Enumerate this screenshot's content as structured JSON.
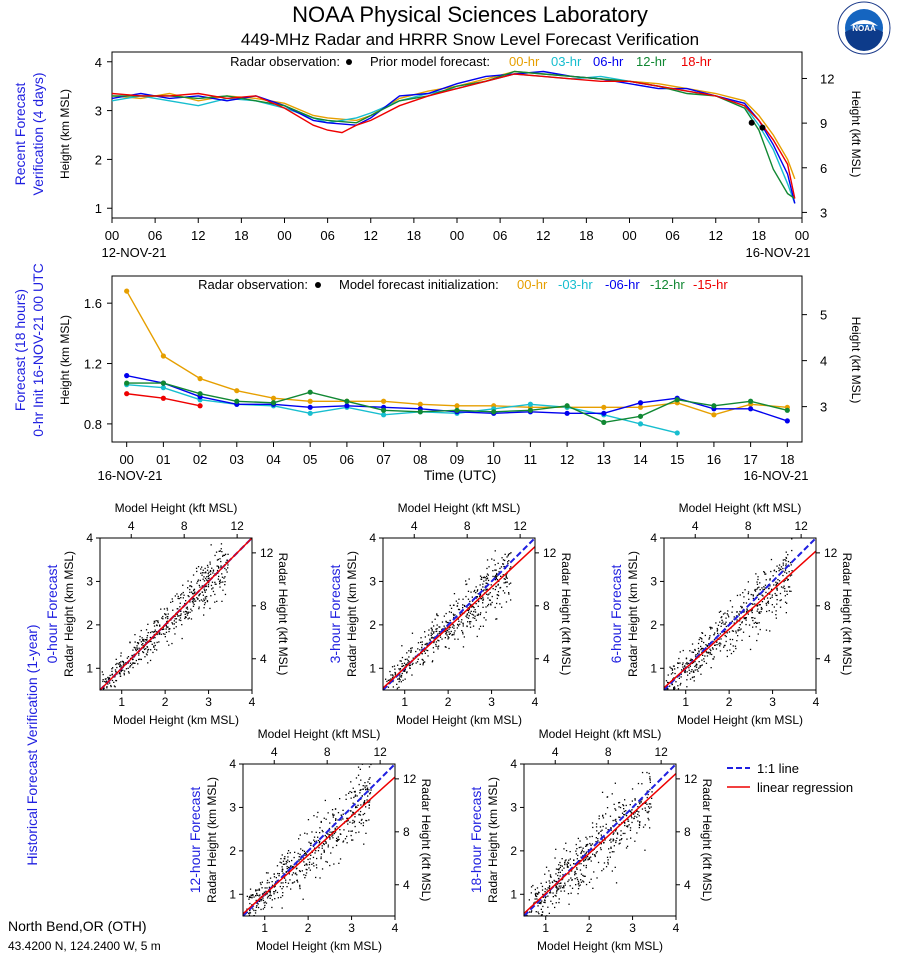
{
  "header": {
    "title": "NOAA Physical Sciences Laboratory",
    "subtitle": "449-MHz Radar and HRRR Snow Level Forecast Verification",
    "logo_text": "NOAA"
  },
  "colors": {
    "hr00": "#e69f00",
    "hr03": "#17becf",
    "hr06": "#0000ee",
    "hr12": "#118833",
    "hr15": "#ee0000",
    "hr18": "#ee0000",
    "side_label": "#1f1fe0",
    "regression": "#ee0000",
    "one_to_one": "#1f1fe0"
  },
  "panel1": {
    "side_label_1": "Recent Forecast",
    "side_label_2": "Verification (4 days)",
    "ylabel_left": "Height (km MSL)",
    "ylabel_right": "Height (kft MSL)",
    "legend_obs": "Radar observation:",
    "legend_model": "Prior model forecast:",
    "legend_series": [
      "00-hr",
      "03-hr",
      "06-hr",
      "12-hr",
      "18-hr"
    ],
    "date_start": "12-NOV-21",
    "date_end": "16-NOV-21"
  },
  "panel2": {
    "side_label_1": "Forecast (18 hours)",
    "side_label_2": "0-hr Init 16-NOV-21 00 UTC",
    "ylabel_left": "Height (km MSL)",
    "ylabel_right": "Height (kft MSL)",
    "xlabel": "Time (UTC)",
    "legend_obs": "Radar observation:",
    "legend_model": "Model forecast initialization:",
    "legend_series": [
      "00-hr",
      "-03-hr",
      "-06-hr",
      "-12-hr",
      "-15-hr"
    ],
    "date_start": "16-NOV-21",
    "date_end": "16-NOV-21"
  },
  "scatter_common": {
    "xlabel_bottom": "Model Height (km MSL)",
    "xlabel_top": "Model Height (kft MSL)",
    "ylabel_left": "Radar Height (km MSL)",
    "ylabel_right": "Radar Height (kft MSL)",
    "side_label": "Historical Forecast Verification (1-year)"
  },
  "legend_bottom": {
    "one_to_one": "1:1 line",
    "regression": "linear regression"
  },
  "station": {
    "name": "North Bend,OR (OTH)",
    "coords": "43.4200 N, 124.2400 W, 5 m"
  },
  "chart_data": [
    {
      "id": "recent_verification",
      "type": "line",
      "x_unit": "hours since 12-NOV-21 00 UTC",
      "x_tick_labels": [
        "00",
        "06",
        "12",
        "18",
        "00",
        "06",
        "12",
        "18",
        "00",
        "06",
        "12",
        "18",
        "00",
        "06",
        "12",
        "18",
        "00"
      ],
      "xlim": [
        0,
        96
      ],
      "ylim": [
        0.8,
        4.2
      ],
      "y_ticks": [
        1,
        2,
        3,
        4
      ],
      "y2_ticks_kft": [
        3,
        6,
        9,
        12
      ],
      "series": [
        {
          "name": "00-hr",
          "color_key": "hr00",
          "points": [
            [
              0,
              3.3
            ],
            [
              4,
              3.25
            ],
            [
              8,
              3.35
            ],
            [
              12,
              3.2
            ],
            [
              16,
              3.3
            ],
            [
              20,
              3.25
            ],
            [
              24,
              3.15
            ],
            [
              28,
              2.9
            ],
            [
              30,
              2.85
            ],
            [
              34,
              2.8
            ],
            [
              36,
              2.9
            ],
            [
              40,
              3.25
            ],
            [
              44,
              3.4
            ],
            [
              48,
              3.5
            ],
            [
              52,
              3.65
            ],
            [
              56,
              3.8
            ],
            [
              60,
              3.75
            ],
            [
              64,
              3.7
            ],
            [
              68,
              3.65
            ],
            [
              72,
              3.6
            ],
            [
              76,
              3.55
            ],
            [
              80,
              3.45
            ],
            [
              84,
              3.35
            ],
            [
              88,
              3.2
            ],
            [
              90,
              2.9
            ],
            [
              92,
              2.5
            ],
            [
              94,
              2.0
            ],
            [
              95,
              1.6
            ]
          ]
        },
        {
          "name": "03-hr",
          "color_key": "hr03",
          "points": [
            [
              0,
              3.2
            ],
            [
              4,
              3.3
            ],
            [
              8,
              3.2
            ],
            [
              12,
              3.1
            ],
            [
              16,
              3.25
            ],
            [
              20,
              3.2
            ],
            [
              24,
              3.05
            ],
            [
              28,
              2.85
            ],
            [
              30,
              2.75
            ],
            [
              34,
              2.85
            ],
            [
              36,
              2.95
            ],
            [
              40,
              3.2
            ],
            [
              44,
              3.35
            ],
            [
              48,
              3.45
            ],
            [
              52,
              3.6
            ],
            [
              56,
              3.75
            ],
            [
              60,
              3.7
            ],
            [
              64,
              3.65
            ],
            [
              68,
              3.7
            ],
            [
              72,
              3.6
            ],
            [
              76,
              3.5
            ],
            [
              80,
              3.4
            ],
            [
              84,
              3.3
            ],
            [
              88,
              3.1
            ],
            [
              90,
              2.7
            ],
            [
              92,
              2.2
            ],
            [
              94,
              1.5
            ],
            [
              95,
              1.1
            ]
          ]
        },
        {
          "name": "06-hr",
          "color_key": "hr06",
          "points": [
            [
              0,
              3.25
            ],
            [
              4,
              3.35
            ],
            [
              8,
              3.25
            ],
            [
              12,
              3.3
            ],
            [
              16,
              3.2
            ],
            [
              20,
              3.3
            ],
            [
              24,
              3.1
            ],
            [
              28,
              2.8
            ],
            [
              30,
              2.75
            ],
            [
              34,
              2.7
            ],
            [
              36,
              2.85
            ],
            [
              40,
              3.3
            ],
            [
              44,
              3.35
            ],
            [
              48,
              3.55
            ],
            [
              52,
              3.7
            ],
            [
              56,
              3.75
            ],
            [
              60,
              3.8
            ],
            [
              64,
              3.7
            ],
            [
              68,
              3.65
            ],
            [
              72,
              3.55
            ],
            [
              76,
              3.45
            ],
            [
              80,
              3.45
            ],
            [
              84,
              3.3
            ],
            [
              88,
              3.15
            ],
            [
              90,
              2.8
            ],
            [
              92,
              2.3
            ],
            [
              94,
              1.7
            ],
            [
              95,
              1.1
            ]
          ]
        },
        {
          "name": "12-hr",
          "color_key": "hr12",
          "points": [
            [
              0,
              3.3
            ],
            [
              4,
              3.3
            ],
            [
              8,
              3.3
            ],
            [
              12,
              3.25
            ],
            [
              16,
              3.3
            ],
            [
              20,
              3.2
            ],
            [
              24,
              3.1
            ],
            [
              28,
              2.85
            ],
            [
              30,
              2.8
            ],
            [
              34,
              2.75
            ],
            [
              36,
              2.9
            ],
            [
              40,
              3.2
            ],
            [
              44,
              3.3
            ],
            [
              48,
              3.5
            ],
            [
              52,
              3.6
            ],
            [
              56,
              3.8
            ],
            [
              60,
              3.75
            ],
            [
              64,
              3.7
            ],
            [
              68,
              3.65
            ],
            [
              72,
              3.6
            ],
            [
              76,
              3.5
            ],
            [
              80,
              3.35
            ],
            [
              84,
              3.3
            ],
            [
              88,
              3.05
            ],
            [
              90,
              2.6
            ],
            [
              92,
              1.8
            ],
            [
              94,
              1.3
            ],
            [
              95,
              1.2
            ]
          ]
        },
        {
          "name": "18-hr",
          "color_key": "hr18",
          "points": [
            [
              0,
              3.35
            ],
            [
              4,
              3.3
            ],
            [
              8,
              3.3
            ],
            [
              12,
              3.35
            ],
            [
              16,
              3.25
            ],
            [
              20,
              3.3
            ],
            [
              24,
              3.05
            ],
            [
              28,
              2.7
            ],
            [
              30,
              2.6
            ],
            [
              32,
              2.55
            ],
            [
              34,
              2.7
            ],
            [
              36,
              2.8
            ],
            [
              40,
              3.1
            ],
            [
              44,
              3.3
            ],
            [
              48,
              3.45
            ],
            [
              52,
              3.6
            ],
            [
              56,
              3.75
            ],
            [
              60,
              3.7
            ],
            [
              64,
              3.65
            ],
            [
              68,
              3.6
            ],
            [
              72,
              3.6
            ],
            [
              76,
              3.5
            ],
            [
              80,
              3.4
            ],
            [
              84,
              3.3
            ],
            [
              88,
              3.1
            ],
            [
              90,
              2.8
            ],
            [
              92,
              2.4
            ],
            [
              94,
              1.9
            ],
            [
              95,
              1.2
            ]
          ]
        },
        {
          "name": "Radar observation",
          "color_key": "obs",
          "points": [
            [
              89,
              2.75
            ],
            [
              90.5,
              2.65
            ]
          ],
          "markers_only": true
        }
      ]
    },
    {
      "id": "forecast_18h",
      "type": "line",
      "x_unit": "hour UTC 16-NOV-21",
      "x_tick_labels": [
        "00",
        "01",
        "02",
        "03",
        "04",
        "05",
        "06",
        "07",
        "08",
        "09",
        "10",
        "11",
        "12",
        "13",
        "14",
        "15",
        "16",
        "17",
        "18"
      ],
      "xlim": [
        0,
        18
      ],
      "ylim": [
        0.68,
        1.78
      ],
      "y_ticks": [
        0.8,
        1.2,
        1.6
      ],
      "y2_ticks_kft": [
        3,
        4,
        5
      ],
      "series": [
        {
          "name": "00-hr",
          "color_key": "hr00",
          "x": [
            0,
            1,
            2,
            3,
            4,
            5,
            6,
            7,
            8,
            9,
            10,
            11,
            12,
            13,
            14,
            15,
            16,
            17,
            18
          ],
          "values": [
            1.68,
            1.25,
            1.1,
            1.02,
            0.97,
            0.95,
            0.95,
            0.95,
            0.93,
            0.92,
            0.92,
            0.91,
            0.91,
            0.91,
            0.91,
            0.94,
            0.86,
            0.93,
            0.91
          ]
        },
        {
          "name": "-03-hr",
          "color_key": "hr03",
          "x": [
            0,
            1,
            2,
            3,
            4,
            5,
            6,
            7,
            8,
            9,
            10,
            11,
            12,
            13,
            14,
            15
          ],
          "values": [
            1.06,
            1.04,
            0.96,
            0.93,
            0.92,
            0.87,
            0.91,
            0.86,
            0.88,
            0.87,
            0.9,
            0.93,
            0.91,
            0.86,
            0.8,
            0.74
          ]
        },
        {
          "name": "-06-hr",
          "color_key": "hr06",
          "x": [
            0,
            1,
            2,
            3,
            4,
            5,
            6,
            7,
            8,
            9,
            10,
            11,
            12,
            13,
            14,
            15,
            16,
            17,
            18
          ],
          "values": [
            1.12,
            1.07,
            0.98,
            0.93,
            0.93,
            0.91,
            0.92,
            0.91,
            0.9,
            0.88,
            0.87,
            0.88,
            0.87,
            0.87,
            0.94,
            0.97,
            0.9,
            0.9,
            0.82
          ]
        },
        {
          "name": "-12-hr",
          "color_key": "hr12",
          "x": [
            0,
            1,
            2,
            3,
            4,
            5,
            6,
            7,
            8,
            9,
            10,
            11,
            12,
            13,
            14,
            15,
            16,
            17,
            18
          ],
          "values": [
            1.07,
            1.07,
            1.0,
            0.95,
            0.94,
            1.01,
            0.95,
            0.89,
            0.88,
            0.89,
            0.88,
            0.89,
            0.92,
            0.81,
            0.85,
            0.96,
            0.92,
            0.95,
            0.89
          ]
        },
        {
          "name": "-15-hr",
          "color_key": "hr15",
          "x": [
            0,
            1,
            2
          ],
          "values": [
            1.0,
            0.97,
            0.92
          ]
        }
      ]
    },
    {
      "id": "scatter_0hr",
      "type": "scatter",
      "label": "0-hour Forecast",
      "xlim": [
        0.5,
        4
      ],
      "ylim": [
        0.5,
        4
      ],
      "ticks": [
        1,
        2,
        3,
        4
      ],
      "kft_ticks": [
        4,
        8,
        12
      ],
      "regression": {
        "slope": 1.0,
        "intercept": 0.0
      }
    },
    {
      "id": "scatter_3hr",
      "type": "scatter",
      "label": "3-hour Forecast",
      "xlim": [
        0.5,
        4
      ],
      "ylim": [
        0.5,
        4
      ],
      "ticks": [
        1,
        2,
        3,
        4
      ],
      "kft_ticks": [
        4,
        8,
        12
      ],
      "regression": {
        "slope": 0.93,
        "intercept": 0.08
      }
    },
    {
      "id": "scatter_6hr",
      "type": "scatter",
      "label": "6-hour Forecast",
      "xlim": [
        0.5,
        4
      ],
      "ylim": [
        0.5,
        4
      ],
      "ticks": [
        1,
        2,
        3,
        4
      ],
      "kft_ticks": [
        4,
        8,
        12
      ],
      "regression": {
        "slope": 0.9,
        "intercept": 0.1
      }
    },
    {
      "id": "scatter_12hr",
      "type": "scatter",
      "label": "12-hour Forecast",
      "xlim": [
        0.5,
        4
      ],
      "ylim": [
        0.5,
        4
      ],
      "ticks": [
        1,
        2,
        3,
        4
      ],
      "kft_ticks": [
        4,
        8,
        12
      ],
      "regression": {
        "slope": 0.9,
        "intercept": 0.1
      }
    },
    {
      "id": "scatter_18hr",
      "type": "scatter",
      "label": "18-hour Forecast",
      "xlim": [
        0.5,
        4
      ],
      "ylim": [
        0.5,
        4
      ],
      "ticks": [
        1,
        2,
        3,
        4
      ],
      "kft_ticks": [
        4,
        8,
        12
      ],
      "regression": {
        "slope": 0.92,
        "intercept": 0.1
      }
    }
  ]
}
